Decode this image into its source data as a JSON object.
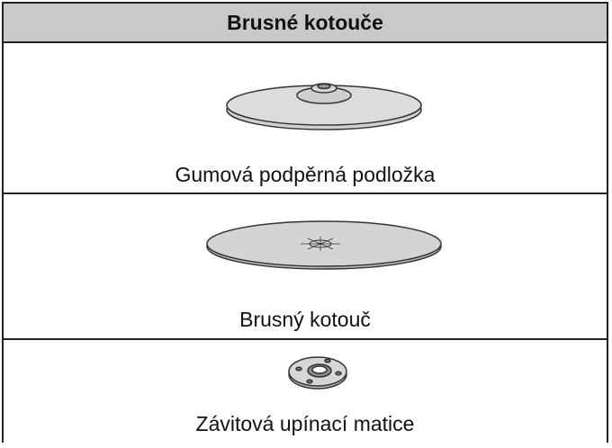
{
  "table": {
    "header": "Brusné kotouče",
    "rows": [
      {
        "label": "Gumová podpěrná podložka"
      },
      {
        "label": "Brusný kotouč"
      },
      {
        "label": "Závitová upínací matice"
      }
    ]
  }
}
